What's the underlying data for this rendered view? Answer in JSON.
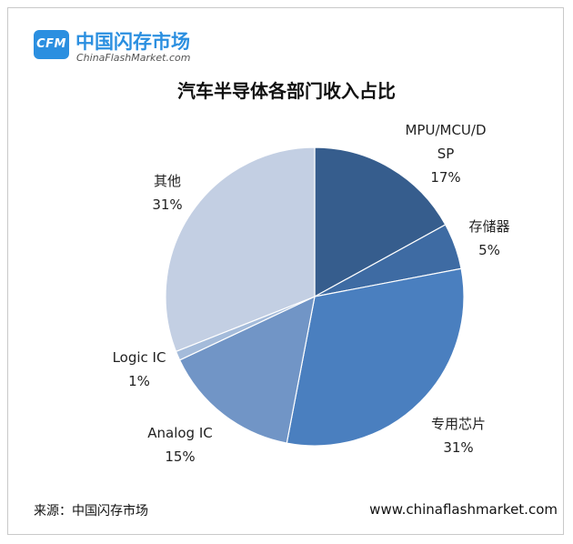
{
  "logo": {
    "badge": "CFM",
    "name_cn": "中国闪存市场",
    "name_en": "ChinaFlashMarket.com"
  },
  "footer": {
    "source": "来源：中国闪存市场",
    "website": "www.chinaflashmarket.com"
  },
  "chart_data": {
    "type": "pie",
    "title": "汽车半导体各部门收入占比",
    "legend": "none",
    "slices": [
      {
        "label_lines": [
          "MPU/MCU/D",
          "SP"
        ],
        "value": 17,
        "value_label": "17%",
        "color": "#365d8d"
      },
      {
        "label_lines": [
          "存储器"
        ],
        "value": 5,
        "value_label": "5%",
        "color": "#3e6ba3"
      },
      {
        "label_lines": [
          "专用芯片"
        ],
        "value": 31,
        "value_label": "31%",
        "color": "#4a7fbf"
      },
      {
        "label_lines": [
          "Analog IC"
        ],
        "value": 15,
        "value_label": "15%",
        "color": "#7195c6"
      },
      {
        "label_lines": [
          "Logic IC"
        ],
        "value": 1,
        "value_label": "1%",
        "color": "#a4bbda"
      },
      {
        "label_lines": [
          "其他"
        ],
        "value": 31,
        "value_label": "31%",
        "color": "#c3cfe3"
      }
    ]
  }
}
